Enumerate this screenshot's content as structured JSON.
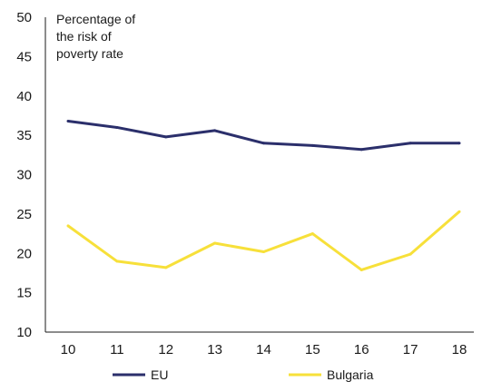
{
  "chart_data": {
    "type": "line",
    "ylabel_lines": [
      "Percentage of",
      "the risk of",
      "poverty rate"
    ],
    "x": [
      10,
      11,
      12,
      13,
      14,
      15,
      16,
      17,
      18
    ],
    "ylim": [
      10,
      50
    ],
    "yticks": [
      10,
      15,
      20,
      25,
      30,
      35,
      40,
      45,
      50
    ],
    "grid": false,
    "legend_position": "bottom",
    "series": [
      {
        "name": "EU",
        "color": "#2b2f6b",
        "values": [
          36.8,
          36.0,
          34.8,
          35.6,
          34.0,
          33.7,
          33.2,
          34.0,
          34.0
        ]
      },
      {
        "name": "Bulgaria",
        "color": "#f7e03a",
        "values": [
          23.5,
          19.0,
          18.2,
          21.3,
          20.2,
          22.5,
          17.9,
          19.9,
          25.3
        ]
      }
    ]
  }
}
